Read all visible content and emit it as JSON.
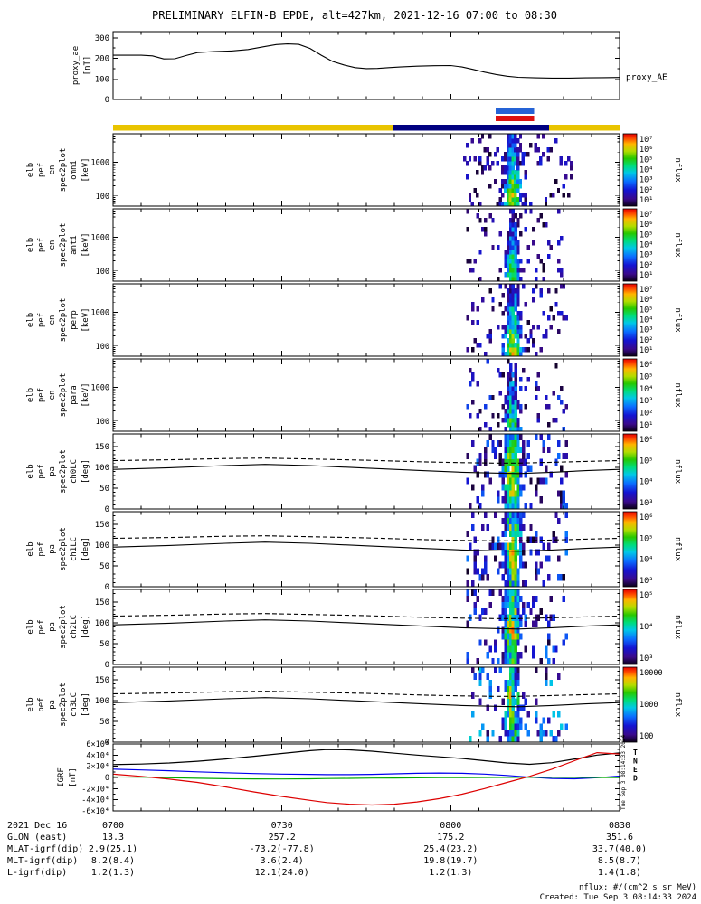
{
  "title": "PRELIMINARY ELFIN-B EPDE, alt=427km, 2021-12-16 07:00 to 08:30",
  "footer": {
    "units": "nflux: #/(cm^2 s sr MeV)",
    "created": "Created: Tue Sep  3 08:14:33 2024",
    "side_timestamp": "Tue Sep 3 08:14:33 2024"
  },
  "time_axis": {
    "tick_labels": [
      "0700",
      "0730",
      "0800",
      "0830"
    ],
    "tick_minutes": [
      0,
      30,
      60,
      90
    ],
    "minor_step_min": 5,
    "duration_min": 90
  },
  "ephemeris": {
    "rows": [
      {
        "label": "2021 Dec 16",
        "values": [
          "0700",
          "0730",
          "0800",
          "0830"
        ]
      },
      {
        "label": "GLON (east)",
        "values": [
          "13.3",
          "257.2",
          "175.2",
          "351.6"
        ]
      },
      {
        "label": "MLAT-igrf(dip)",
        "values": [
          "2.9(25.1)",
          "-73.2(-77.8)",
          "25.4(23.2)",
          "33.7(40.0)"
        ]
      },
      {
        "label": "MLT-igrf(dip)",
        "values": [
          "8.2(8.4)",
          "3.6(2.4)",
          "19.8(19.7)",
          "8.5(8.7)"
        ]
      },
      {
        "label": "L-igrf(dip)",
        "values": [
          "1.2(1.3)",
          "12.1(24.0)",
          "1.2(1.3)",
          "1.4(1.8)"
        ]
      }
    ]
  },
  "marker_bars": {
    "blue": {
      "t0": 68,
      "t1": 74.8,
      "color": "#2563d6"
    },
    "red": {
      "t0": 68,
      "t1": 74.8,
      "color": "#dd1111"
    },
    "zone": {
      "base_color": "#e9c400",
      "overlay": {
        "t0": 49.8,
        "t1": 77.5,
        "color": "#000080"
      }
    }
  },
  "pa_lines": {
    "t": [
      0,
      10,
      20,
      27,
      35,
      45,
      55,
      62,
      68,
      72,
      78,
      84,
      90
    ],
    "solid": [
      95,
      99,
      104,
      107,
      104,
      98,
      92,
      88,
      86,
      85,
      88,
      92,
      95
    ],
    "dashed": [
      116,
      118,
      121,
      122,
      120,
      117,
      113,
      111,
      110,
      110,
      112,
      114,
      116
    ]
  },
  "chart_data": [
    {
      "id": "proxy_ae",
      "type": "line",
      "ylabel_lines": [
        "proxy_ae",
        "[nT]"
      ],
      "right_label": "proxy_AE",
      "ylim": [
        0,
        330
      ],
      "yticks": [
        0,
        100,
        200,
        300
      ],
      "minor_step": 50,
      "line_color": "#000000",
      "x": [
        0,
        5,
        7,
        9,
        11,
        13,
        15,
        18,
        21,
        24,
        27,
        29,
        31,
        33,
        35,
        37,
        39,
        41,
        43,
        45,
        47,
        49,
        51,
        54,
        57,
        60,
        62,
        64,
        66,
        68,
        70,
        72,
        75,
        78,
        81,
        84,
        87,
        90
      ],
      "y": [
        215,
        215,
        212,
        197,
        198,
        214,
        228,
        233,
        236,
        243,
        258,
        267,
        270,
        268,
        248,
        215,
        185,
        168,
        155,
        150,
        151,
        155,
        158,
        162,
        164,
        165,
        158,
        146,
        133,
        122,
        113,
        108,
        105,
        104,
        104,
        105,
        106,
        107
      ]
    },
    {
      "id": "en_omni",
      "type": "energy_spec",
      "ylabel_lines": [
        "elb",
        "pef",
        "en",
        "spec2plot",
        "omni",
        "[keV]"
      ],
      "yscale": "log",
      "ylim": [
        50,
        7000
      ],
      "yticks": [
        100,
        1000
      ],
      "colorbar": {
        "labels": [
          "10⁷",
          "10⁶",
          "10⁵",
          "10⁴",
          "10³",
          "10²",
          "10¹"
        ],
        "title": "nflux",
        "log_range": [
          1,
          7
        ]
      },
      "burst": {
        "t_center": 71,
        "t_sigma": 1.5,
        "amp_log": 5.9,
        "energy_falloff": 3.6,
        "jitter": 1.0
      },
      "speckle": {
        "t_range": [
          62.5,
          81.5
        ],
        "prob": 0.13
      },
      "seed": 11
    },
    {
      "id": "en_anti",
      "type": "energy_spec",
      "ylabel_lines": [
        "elb",
        "pef",
        "en",
        "spec2plot",
        "anti",
        "[keV]"
      ],
      "yscale": "log",
      "ylim": [
        50,
        7000
      ],
      "yticks": [
        100,
        1000
      ],
      "colorbar": {
        "labels": [
          "10⁷",
          "10⁶",
          "10⁵",
          "10⁴",
          "10³",
          "10²",
          "10¹"
        ],
        "title": "nflux",
        "log_range": [
          1,
          7
        ]
      },
      "burst": {
        "t_center": 71,
        "t_sigma": 1.2,
        "amp_log": 5.0,
        "energy_falloff": 3.4,
        "jitter": 1.0
      },
      "speckle": {
        "t_range": [
          63,
          80
        ],
        "prob": 0.1
      },
      "seed": 22
    },
    {
      "id": "en_perp",
      "type": "energy_spec",
      "ylabel_lines": [
        "elb",
        "pef",
        "en",
        "spec2plot",
        "perp",
        "[keV]"
      ],
      "yscale": "log",
      "ylim": [
        50,
        7000
      ],
      "yticks": [
        100,
        1000
      ],
      "colorbar": {
        "labels": [
          "10⁷",
          "10⁶",
          "10⁵",
          "10⁴",
          "10³",
          "10²",
          "10¹"
        ],
        "title": "nflux",
        "log_range": [
          1,
          7
        ]
      },
      "burst": {
        "t_center": 71,
        "t_sigma": 1.45,
        "amp_log": 5.7,
        "energy_falloff": 3.5,
        "jitter": 1.0
      },
      "speckle": {
        "t_range": [
          63,
          81
        ],
        "prob": 0.12
      },
      "seed": 33
    },
    {
      "id": "en_para",
      "type": "energy_spec",
      "ylabel_lines": [
        "elb",
        "pef",
        "en",
        "spec2plot",
        "para",
        "[keV]"
      ],
      "yscale": "log",
      "ylim": [
        50,
        7000
      ],
      "yticks": [
        100,
        1000
      ],
      "colorbar": {
        "labels": [
          "10⁶",
          "10⁵",
          "10⁴",
          "10³",
          "10²",
          "10¹"
        ],
        "title": "nflux",
        "log_range": [
          1,
          6
        ]
      },
      "burst": {
        "t_center": 71,
        "t_sigma": 1.2,
        "amp_log": 4.3,
        "energy_falloff": 3.0,
        "jitter": 1.0
      },
      "speckle": {
        "t_range": [
          63,
          81
        ],
        "prob": 0.1
      },
      "seed": 44
    },
    {
      "id": "pa_ch0",
      "type": "pa_spec",
      "ylabel_lines": [
        "elb",
        "pef",
        "pa",
        "spec2plot",
        "ch0LC",
        "[deg]"
      ],
      "ylim": [
        0,
        180
      ],
      "yticks": [
        0,
        50,
        100,
        150
      ],
      "minor_step": 10,
      "colorbar": {
        "labels": [
          "10⁶",
          "10⁵",
          "10⁴",
          "10³"
        ],
        "title": "nflux",
        "log_range": [
          2.5,
          6.5
        ]
      },
      "burst": {
        "t_center": 71,
        "t_sigma": 1.8,
        "amp_log": 5.7,
        "pa_falloff": 1.2,
        "jitter": 0.9
      },
      "speckle": {
        "t_range": [
          63,
          81
        ],
        "prob": 0.18
      },
      "seed": 55
    },
    {
      "id": "pa_ch1",
      "type": "pa_spec",
      "ylabel_lines": [
        "elb",
        "pef",
        "pa",
        "spec2plot",
        "ch1LC",
        "[deg]"
      ],
      "ylim": [
        0,
        180
      ],
      "yticks": [
        0,
        50,
        100,
        150
      ],
      "minor_step": 10,
      "colorbar": {
        "labels": [
          "10⁶",
          "10⁵",
          "10⁴",
          "10³"
        ],
        "title": "nflux",
        "log_range": [
          2.5,
          6.5
        ]
      },
      "burst": {
        "t_center": 71,
        "t_sigma": 1.8,
        "amp_log": 5.6,
        "pa_falloff": 1.2,
        "jitter": 0.9
      },
      "speckle": {
        "t_range": [
          63,
          81
        ],
        "prob": 0.18
      },
      "seed": 66
    },
    {
      "id": "pa_ch2",
      "type": "pa_spec",
      "ylabel_lines": [
        "elb",
        "pef",
        "pa",
        "spec2plot",
        "ch2LC",
        "[deg]"
      ],
      "ylim": [
        0,
        180
      ],
      "yticks": [
        0,
        50,
        100,
        150
      ],
      "minor_step": 10,
      "colorbar": {
        "labels": [
          "10⁵",
          "10⁴",
          "10³"
        ],
        "title": "nflux",
        "log_range": [
          2,
          6
        ]
      },
      "burst": {
        "t_center": 71,
        "t_sigma": 1.7,
        "amp_log": 5.0,
        "pa_falloff": 1.1,
        "jitter": 0.9
      },
      "speckle": {
        "t_range": [
          63,
          81
        ],
        "prob": 0.16
      },
      "seed": 77
    },
    {
      "id": "pa_ch3",
      "type": "pa_spec",
      "ylabel_lines": [
        "elb",
        "pef",
        "pa",
        "spec2plot",
        "ch3LC",
        "[deg]"
      ],
      "ylim": [
        0,
        180
      ],
      "yticks": [
        0,
        50,
        100,
        150
      ],
      "minor_step": 10,
      "colorbar": {
        "labels": [
          "10000",
          "1000",
          "100"
        ],
        "title": "nflux",
        "log_range": [
          1.5,
          4.5
        ]
      },
      "burst": {
        "t_center": 71,
        "t_sigma": 1.5,
        "amp_log": 3.7,
        "pa_falloff": 1.0,
        "jitter": 0.8
      },
      "speckle": {
        "t_range": [
          63,
          81
        ],
        "prob": 0.14
      },
      "seed": 88
    },
    {
      "id": "igrf",
      "type": "multi_line",
      "ylabel_lines": [
        "IGRF",
        "[nT]"
      ],
      "ylim": [
        -60000,
        60000
      ],
      "minor_step": 10000,
      "yticks": [
        {
          "v": 60000,
          "label": "6×10⁴"
        },
        {
          "v": 40000,
          "label": "4×10⁴"
        },
        {
          "v": 20000,
          "label": "2×10⁴"
        },
        {
          "v": 0,
          "label": "0"
        },
        {
          "v": -20000,
          "label": "-2×10⁴"
        },
        {
          "v": -40000,
          "label": "-4×10⁴"
        },
        {
          "v": -60000,
          "label": "-6×10⁴"
        }
      ],
      "x": [
        0,
        5,
        10,
        15,
        20,
        25,
        30,
        35,
        38,
        42,
        46,
        50,
        54,
        58,
        62,
        66,
        70,
        74,
        78,
        82,
        86,
        90
      ],
      "series": [
        {
          "name": "T",
          "color": "#000000",
          "y": [
            23000,
            24000,
            26000,
            29000,
            33000,
            38000,
            43000,
            48000,
            50000,
            49500,
            47000,
            43500,
            40000,
            37000,
            34000,
            30000,
            26000,
            23500,
            26500,
            33000,
            40000,
            44000
          ]
        },
        {
          "name": "N",
          "color": "#0000ee",
          "y": [
            15000,
            13500,
            12000,
            10000,
            8500,
            7000,
            6000,
            5500,
            5000,
            5000,
            5500,
            6500,
            7500,
            8000,
            7500,
            6000,
            3500,
            500,
            -2000,
            -2500,
            -500,
            2500
          ]
        },
        {
          "name": "E",
          "color": "#00aa00",
          "y": [
            1000,
            500,
            -500,
            -1500,
            -2200,
            -2600,
            -2700,
            -2400,
            -2000,
            -1600,
            -1200,
            -900,
            -600,
            -400,
            -200,
            0,
            200,
            300,
            300,
            200,
            0,
            -300
          ]
        },
        {
          "name": "D",
          "color": "#dd0000",
          "y": [
            6000,
            2000,
            -3000,
            -9000,
            -17000,
            -26000,
            -34000,
            -41000,
            -45000,
            -48000,
            -49500,
            -48000,
            -44000,
            -38000,
            -30000,
            -20000,
            -9000,
            2000,
            15000,
            30000,
            44500,
            42000
          ]
        }
      ],
      "legend": [
        {
          "label": "T",
          "color": "#000000"
        },
        {
          "label": "N",
          "color": "#0000ee"
        },
        {
          "label": "E",
          "color": "#00aa00"
        },
        {
          "label": "D",
          "color": "#dd0000"
        }
      ]
    }
  ]
}
